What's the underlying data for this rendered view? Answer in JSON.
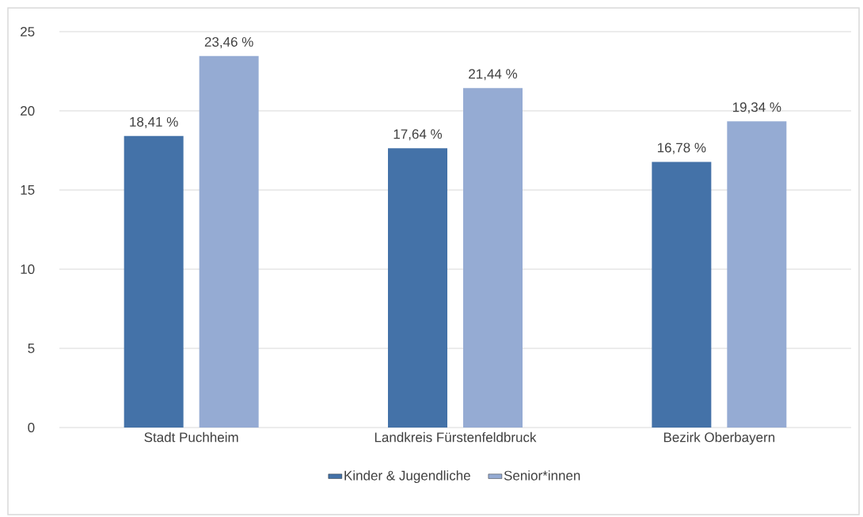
{
  "chart_data": {
    "type": "bar",
    "categories": [
      "Stadt Puchheim",
      "Landkreis Fürstenfeldbruck",
      "Bezirk Oberbayern"
    ],
    "series": [
      {
        "name": "Kinder & Jugendliche",
        "color": "#4472a8",
        "values": [
          18.41,
          17.64,
          16.78
        ],
        "value_labels": [
          "18,41 %",
          "17,64 %",
          "16,78 %"
        ]
      },
      {
        "name": "Senior*innen",
        "color": "#95abd3",
        "values": [
          23.46,
          21.44,
          19.34
        ],
        "value_labels": [
          "23,46 %",
          "21,44 %",
          "19,34 %"
        ]
      }
    ],
    "ylim": [
      0,
      25
    ],
    "yticks": [
      0,
      5,
      10,
      15,
      20,
      25
    ],
    "grid": "y",
    "legend": "bottom"
  }
}
